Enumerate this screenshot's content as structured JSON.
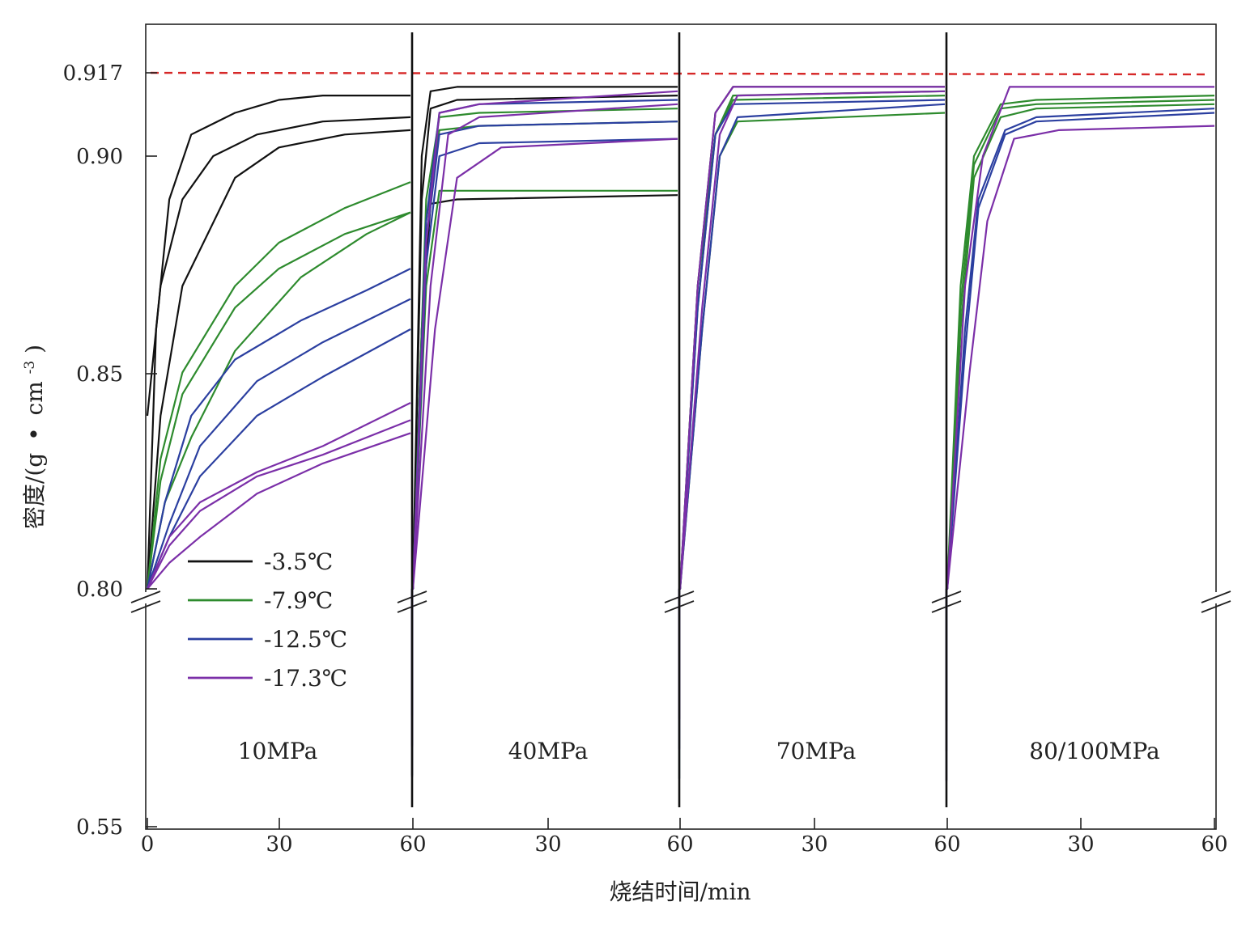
{
  "chart_data": {
    "type": "line",
    "xlabel": "烧结时间/min",
    "ylabel": "密度/(g·cm⁻³)",
    "ylabel_parts": [
      "密度/(g",
      "•",
      "cm",
      "-3",
      ")"
    ],
    "y_ticks": [
      "0.917",
      "0.90",
      "0.85",
      "0.80",
      "0.55"
    ],
    "x_ticks": [
      "0",
      "30",
      "60",
      "30",
      "60",
      "30",
      "60",
      "30",
      "60"
    ],
    "reference_line": {
      "y": 0.917,
      "style": "dashed",
      "color": "#d62828"
    },
    "panels": [
      {
        "label": "10MPa",
        "x_range": [
          0,
          60
        ]
      },
      {
        "label": "40MPa",
        "x_range": [
          0,
          60
        ]
      },
      {
        "label": "70MPa",
        "x_range": [
          0,
          60
        ]
      },
      {
        "label": "80/100MPa",
        "x_range": [
          0,
          60
        ]
      }
    ],
    "legend": [
      {
        "label": "-3.5℃",
        "color": "#111111"
      },
      {
        "label": "-7.9℃",
        "color": "#2e8b2e"
      },
      {
        "label": "-12.5℃",
        "color": "#2b3fa0"
      },
      {
        "label": "-17.3℃",
        "color": "#7b2fa8"
      }
    ],
    "legend_position": "lower-left of first panel",
    "series": [
      {
        "color": "#111111",
        "panel": 0,
        "points": [
          [
            0,
            0.8
          ],
          [
            2,
            0.86
          ],
          [
            5,
            0.89
          ],
          [
            10,
            0.905
          ],
          [
            20,
            0.91
          ],
          [
            30,
            0.913
          ],
          [
            40,
            0.914
          ],
          [
            60,
            0.914
          ]
        ]
      },
      {
        "color": "#111111",
        "panel": 0,
        "points": [
          [
            0,
            0.84
          ],
          [
            3,
            0.87
          ],
          [
            8,
            0.89
          ],
          [
            15,
            0.9
          ],
          [
            25,
            0.905
          ],
          [
            40,
            0.908
          ],
          [
            60,
            0.909
          ]
        ]
      },
      {
        "color": "#111111",
        "panel": 0,
        "points": [
          [
            0,
            0.8
          ],
          [
            3,
            0.84
          ],
          [
            8,
            0.87
          ],
          [
            20,
            0.895
          ],
          [
            30,
            0.902
          ],
          [
            45,
            0.905
          ],
          [
            60,
            0.906
          ]
        ]
      },
      {
        "color": "#2e8b2e",
        "panel": 0,
        "points": [
          [
            0,
            0.8
          ],
          [
            3,
            0.83
          ],
          [
            8,
            0.85
          ],
          [
            20,
            0.87
          ],
          [
            30,
            0.88
          ],
          [
            45,
            0.888
          ],
          [
            60,
            0.894
          ]
        ]
      },
      {
        "color": "#2e8b2e",
        "panel": 0,
        "points": [
          [
            0,
            0.8
          ],
          [
            3,
            0.825
          ],
          [
            8,
            0.845
          ],
          [
            20,
            0.865
          ],
          [
            30,
            0.874
          ],
          [
            45,
            0.882
          ],
          [
            60,
            0.887
          ]
        ]
      },
      {
        "color": "#2e8b2e",
        "panel": 0,
        "points": [
          [
            0,
            0.8
          ],
          [
            4,
            0.82
          ],
          [
            10,
            0.835
          ],
          [
            20,
            0.855
          ],
          [
            35,
            0.872
          ],
          [
            50,
            0.882
          ],
          [
            60,
            0.887
          ]
        ]
      },
      {
        "color": "#2b3fa0",
        "panel": 0,
        "points": [
          [
            0,
            0.8
          ],
          [
            4,
            0.82
          ],
          [
            10,
            0.84
          ],
          [
            20,
            0.853
          ],
          [
            35,
            0.862
          ],
          [
            50,
            0.869
          ],
          [
            60,
            0.874
          ]
        ]
      },
      {
        "color": "#2b3fa0",
        "panel": 0,
        "points": [
          [
            0,
            0.8
          ],
          [
            5,
            0.815
          ],
          [
            12,
            0.833
          ],
          [
            25,
            0.848
          ],
          [
            40,
            0.857
          ],
          [
            60,
            0.867
          ]
        ]
      },
      {
        "color": "#2b3fa0",
        "panel": 0,
        "points": [
          [
            0,
            0.8
          ],
          [
            5,
            0.812
          ],
          [
            12,
            0.826
          ],
          [
            25,
            0.84
          ],
          [
            40,
            0.849
          ],
          [
            60,
            0.86
          ]
        ]
      },
      {
        "color": "#7b2fa8",
        "panel": 0,
        "points": [
          [
            0,
            0.8
          ],
          [
            5,
            0.812
          ],
          [
            12,
            0.82
          ],
          [
            25,
            0.827
          ],
          [
            40,
            0.833
          ],
          [
            60,
            0.843
          ]
        ]
      },
      {
        "color": "#7b2fa8",
        "panel": 0,
        "points": [
          [
            0,
            0.8
          ],
          [
            5,
            0.81
          ],
          [
            12,
            0.818
          ],
          [
            25,
            0.826
          ],
          [
            40,
            0.831
          ],
          [
            60,
            0.839
          ]
        ]
      },
      {
        "color": "#7b2fa8",
        "panel": 0,
        "points": [
          [
            0,
            0.8
          ],
          [
            5,
            0.806
          ],
          [
            12,
            0.812
          ],
          [
            25,
            0.822
          ],
          [
            40,
            0.829
          ],
          [
            60,
            0.836
          ]
        ]
      },
      {
        "color": "#111111",
        "panel": 1,
        "points": [
          [
            0,
            0.8
          ],
          [
            2,
            0.9
          ],
          [
            4,
            0.915
          ],
          [
            10,
            0.916
          ],
          [
            60,
            0.916
          ]
        ]
      },
      {
        "color": "#111111",
        "panel": 1,
        "points": [
          [
            0,
            0.8
          ],
          [
            2,
            0.89
          ],
          [
            4,
            0.911
          ],
          [
            10,
            0.913
          ],
          [
            60,
            0.914
          ]
        ]
      },
      {
        "color": "#111111",
        "panel": 1,
        "points": [
          [
            0,
            0.8
          ],
          [
            2,
            0.86
          ],
          [
            4,
            0.889
          ],
          [
            10,
            0.89
          ],
          [
            60,
            0.891
          ]
        ]
      },
      {
        "color": "#2e8b2e",
        "panel": 1,
        "points": [
          [
            0,
            0.8
          ],
          [
            3,
            0.89
          ],
          [
            6,
            0.909
          ],
          [
            15,
            0.91
          ],
          [
            60,
            0.911
          ]
        ]
      },
      {
        "color": "#2e8b2e",
        "panel": 1,
        "points": [
          [
            0,
            0.8
          ],
          [
            3,
            0.885
          ],
          [
            6,
            0.906
          ],
          [
            15,
            0.907
          ],
          [
            60,
            0.908
          ]
        ]
      },
      {
        "color": "#2e8b2e",
        "panel": 1,
        "points": [
          [
            0,
            0.8
          ],
          [
            3,
            0.87
          ],
          [
            6,
            0.892
          ],
          [
            15,
            0.892
          ],
          [
            60,
            0.892
          ]
        ]
      },
      {
        "color": "#2b3fa0",
        "panel": 1,
        "points": [
          [
            0,
            0.8
          ],
          [
            3,
            0.885
          ],
          [
            6,
            0.91
          ],
          [
            15,
            0.912
          ],
          [
            60,
            0.913
          ]
        ]
      },
      {
        "color": "#2b3fa0",
        "panel": 1,
        "points": [
          [
            0,
            0.8
          ],
          [
            3,
            0.88
          ],
          [
            6,
            0.905
          ],
          [
            15,
            0.907
          ],
          [
            60,
            0.908
          ]
        ]
      },
      {
        "color": "#2b3fa0",
        "panel": 1,
        "points": [
          [
            0,
            0.8
          ],
          [
            3,
            0.875
          ],
          [
            6,
            0.9
          ],
          [
            15,
            0.903
          ],
          [
            60,
            0.904
          ]
        ]
      },
      {
        "color": "#7b2fa8",
        "panel": 1,
        "points": [
          [
            0,
            0.8
          ],
          [
            3,
            0.88
          ],
          [
            6,
            0.91
          ],
          [
            15,
            0.912
          ],
          [
            60,
            0.915
          ]
        ]
      },
      {
        "color": "#7b2fa8",
        "panel": 1,
        "points": [
          [
            0,
            0.8
          ],
          [
            4,
            0.87
          ],
          [
            8,
            0.905
          ],
          [
            15,
            0.909
          ],
          [
            60,
            0.912
          ]
        ]
      },
      {
        "color": "#7b2fa8",
        "panel": 1,
        "points": [
          [
            0,
            0.8
          ],
          [
            5,
            0.86
          ],
          [
            10,
            0.895
          ],
          [
            20,
            0.902
          ],
          [
            60,
            0.904
          ]
        ]
      },
      {
        "color": "#111111",
        "panel": 2,
        "points": [
          [
            0,
            0.8
          ],
          [
            4,
            0.87
          ],
          [
            8,
            0.91
          ],
          [
            12,
            0.916
          ],
          [
            60,
            0.916
          ]
        ]
      },
      {
        "color": "#2e8b2e",
        "panel": 2,
        "points": [
          [
            0,
            0.8
          ],
          [
            4,
            0.87
          ],
          [
            8,
            0.905
          ],
          [
            12,
            0.914
          ],
          [
            60,
            0.915
          ]
        ]
      },
      {
        "color": "#2e8b2e",
        "panel": 2,
        "points": [
          [
            0,
            0.8
          ],
          [
            4,
            0.865
          ],
          [
            8,
            0.905
          ],
          [
            12,
            0.913
          ],
          [
            60,
            0.914
          ]
        ]
      },
      {
        "color": "#2e8b2e",
        "panel": 2,
        "points": [
          [
            0,
            0.8
          ],
          [
            5,
            0.86
          ],
          [
            9,
            0.9
          ],
          [
            13,
            0.908
          ],
          [
            60,
            0.91
          ]
        ]
      },
      {
        "color": "#2b3fa0",
        "panel": 2,
        "points": [
          [
            0,
            0.8
          ],
          [
            4,
            0.865
          ],
          [
            8,
            0.905
          ],
          [
            12,
            0.912
          ],
          [
            60,
            0.913
          ]
        ]
      },
      {
        "color": "#2b3fa0",
        "panel": 2,
        "points": [
          [
            0,
            0.8
          ],
          [
            5,
            0.86
          ],
          [
            9,
            0.9
          ],
          [
            13,
            0.909
          ],
          [
            60,
            0.912
          ]
        ]
      },
      {
        "color": "#7b2fa8",
        "panel": 2,
        "points": [
          [
            0,
            0.8
          ],
          [
            4,
            0.87
          ],
          [
            8,
            0.91
          ],
          [
            12,
            0.916
          ],
          [
            60,
            0.916
          ]
        ]
      },
      {
        "color": "#7b2fa8",
        "panel": 2,
        "points": [
          [
            0,
            0.8
          ],
          [
            5,
            0.865
          ],
          [
            9,
            0.905
          ],
          [
            13,
            0.914
          ],
          [
            60,
            0.915
          ]
        ]
      },
      {
        "color": "#2e8b2e",
        "panel": 3,
        "points": [
          [
            0,
            0.8
          ],
          [
            3,
            0.87
          ],
          [
            6,
            0.9
          ],
          [
            12,
            0.912
          ],
          [
            20,
            0.913
          ],
          [
            60,
            0.914
          ]
        ]
      },
      {
        "color": "#2e8b2e",
        "panel": 3,
        "points": [
          [
            0,
            0.8
          ],
          [
            3,
            0.865
          ],
          [
            6,
            0.898
          ],
          [
            12,
            0.911
          ],
          [
            20,
            0.912
          ],
          [
            60,
            0.913
          ]
        ]
      },
      {
        "color": "#2e8b2e",
        "panel": 3,
        "points": [
          [
            0,
            0.8
          ],
          [
            3,
            0.86
          ],
          [
            6,
            0.895
          ],
          [
            12,
            0.909
          ],
          [
            20,
            0.911
          ],
          [
            60,
            0.912
          ]
        ]
      },
      {
        "color": "#2b3fa0",
        "panel": 3,
        "points": [
          [
            0,
            0.8
          ],
          [
            4,
            0.86
          ],
          [
            7,
            0.89
          ],
          [
            13,
            0.906
          ],
          [
            20,
            0.909
          ],
          [
            60,
            0.911
          ]
        ]
      },
      {
        "color": "#2b3fa0",
        "panel": 3,
        "points": [
          [
            0,
            0.8
          ],
          [
            4,
            0.855
          ],
          [
            7,
            0.888
          ],
          [
            13,
            0.905
          ],
          [
            20,
            0.908
          ],
          [
            60,
            0.91
          ]
        ]
      },
      {
        "color": "#7b2fa8",
        "panel": 3,
        "points": [
          [
            0,
            0.8
          ],
          [
            4,
            0.87
          ],
          [
            8,
            0.9
          ],
          [
            14,
            0.916
          ],
          [
            60,
            0.916
          ]
        ]
      },
      {
        "color": "#7b2fa8",
        "panel": 3,
        "points": [
          [
            0,
            0.8
          ],
          [
            5,
            0.85
          ],
          [
            9,
            0.885
          ],
          [
            15,
            0.904
          ],
          [
            25,
            0.906
          ],
          [
            60,
            0.907
          ]
        ]
      }
    ]
  }
}
